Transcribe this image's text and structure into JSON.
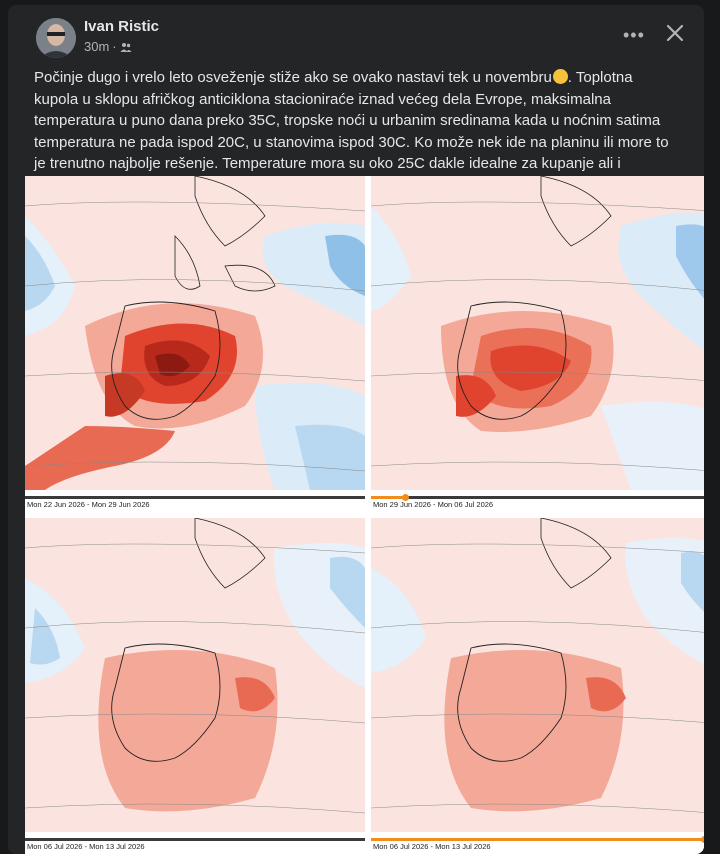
{
  "post": {
    "author": "Ivan Ristic",
    "time": "30m",
    "audience_icon": "friends-icon",
    "text": "Počinje dugo i vrelo leto osveženje stiže ako se ovako nastavi tek u novembru",
    "text_rest": ". Toplotna kupola u sklopu afričkog anticiklona stacioniraće iznad većeg dela Evrope, maksimalna temperatura u puno dana preko 35C, tropske noći u urbanim sredinama kada u noćnim satima temperatura ne pada ispod 20C, u stanovima ispod 30C. Ko može nek ide na planinu ili more to je trenutno najbolje rešenje. Temperature mora su oko 25C dakle idealne za kupanje ali i odmor!!!",
    "emoji": "winking-face-emoji"
  },
  "maps": [
    {
      "label": "Mon 22 Jun 2026 - Mon 29 Jun 2026",
      "progress": 0.0
    },
    {
      "label": "Mon 29 Jun 2026 - Mon 06 Jul 2026",
      "progress": 0.1
    },
    {
      "label": "Mon 06 Jul 2026 - Mon 13 Jul 2026",
      "progress": 0.0
    },
    {
      "label": "Mon 06 Jul 2026 - Mon 13 Jul 2026",
      "progress": 0.98
    }
  ],
  "colors": {
    "background": "#18191a",
    "card": "#242526",
    "text": "#e4e6eb",
    "secondary": "#b0b3b8",
    "warm_light": "#f8c9bf",
    "warm_mid": "#f08f7a",
    "warm_strong": "#e0442e",
    "warm_extreme": "#8c1a10",
    "cool_light": "#dcebf8",
    "cool_mid": "#9fc9ec",
    "timeline": "#f28c1c"
  }
}
